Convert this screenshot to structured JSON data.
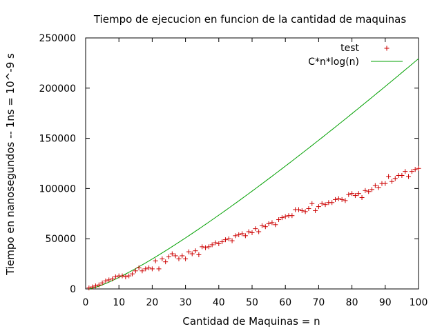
{
  "chart_data": {
    "type": "scatter",
    "title": "Tiempo de ejecucion en funcion de la cantidad de maquinas",
    "xlabel": "Cantidad de Maquinas = n",
    "ylabel": "Tiempo en nanosegundos -- 1ns = 10^-9 s",
    "xlim": [
      0,
      100
    ],
    "ylim": [
      0,
      250000
    ],
    "xticks": [
      "0",
      "10",
      "20",
      "30",
      "40",
      "50",
      "60",
      "70",
      "80",
      "90",
      "100"
    ],
    "yticks": [
      "0",
      "50000",
      "100000",
      "150000",
      "200000",
      "250000"
    ],
    "grid": false,
    "legend_position": "top-right",
    "series": [
      {
        "name": "test",
        "kind": "points",
        "marker": "+",
        "color": "#cc0000",
        "x": [
          1,
          2,
          3,
          4,
          5,
          6,
          7,
          8,
          9,
          10,
          11,
          12,
          13,
          14,
          15,
          16,
          17,
          18,
          19,
          20,
          21,
          22,
          23,
          24,
          25,
          26,
          27,
          28,
          29,
          30,
          31,
          32,
          33,
          34,
          35,
          36,
          37,
          38,
          39,
          40,
          41,
          42,
          43,
          44,
          45,
          46,
          47,
          48,
          49,
          50,
          51,
          52,
          53,
          54,
          55,
          56,
          57,
          58,
          59,
          60,
          61,
          62,
          63,
          64,
          65,
          66,
          67,
          68,
          69,
          70,
          71,
          72,
          73,
          74,
          75,
          76,
          77,
          78,
          79,
          80,
          81,
          82,
          83,
          84,
          85,
          86,
          87,
          88,
          89,
          90,
          91,
          92,
          93,
          94,
          95,
          96,
          97,
          98,
          99,
          100
        ],
        "y": [
          1000,
          2000,
          3000,
          4000,
          6000,
          8000,
          9000,
          10000,
          12000,
          13000,
          13000,
          12000,
          13000,
          15000,
          18000,
          21000,
          18000,
          20000,
          21000,
          20000,
          28000,
          20000,
          30000,
          27000,
          32000,
          35000,
          33000,
          30000,
          33000,
          30000,
          37000,
          35000,
          38000,
          34000,
          42000,
          41000,
          42000,
          44000,
          46000,
          45000,
          47000,
          49000,
          50000,
          48000,
          53000,
          54000,
          55000,
          53000,
          57000,
          56000,
          60000,
          57000,
          63000,
          62000,
          65000,
          66000,
          64000,
          69000,
          71000,
          72000,
          73000,
          73000,
          79000,
          79000,
          78000,
          77000,
          80000,
          85000,
          78000,
          82000,
          85000,
          84000,
          86000,
          86000,
          89000,
          90000,
          89000,
          88000,
          94000,
          95000,
          93000,
          95000,
          91000,
          98000,
          97000,
          99000,
          103000,
          101000,
          105000,
          105000,
          112000,
          107000,
          110000,
          113000,
          113000,
          117000,
          112000,
          117000,
          119000,
          120000
        ]
      },
      {
        "name": "C*n*log(n)",
        "kind": "line",
        "formula": "C*n*log(n)",
        "C": 498,
        "color": "#00a000",
        "x_range": [
          1,
          100
        ]
      }
    ]
  }
}
